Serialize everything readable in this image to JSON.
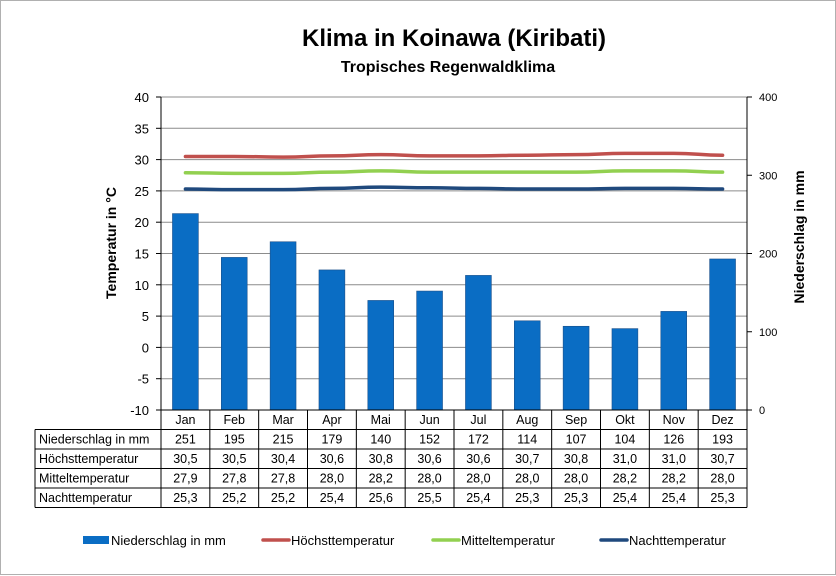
{
  "chart_data": {
    "type": "bar",
    "title": "Klima in Koinawa (Kiribati)",
    "subtitle": "Tropisches Regenwaldklima",
    "ylabel_left": "Temperatur in °C",
    "ylabel_right": "Niederschlag in mm",
    "categories": [
      "Jan",
      "Feb",
      "Mar",
      "Apr",
      "Mai",
      "Jun",
      "Jul",
      "Aug",
      "Sep",
      "Okt",
      "Nov",
      "Dez"
    ],
    "ylim_left": [
      -10,
      40
    ],
    "yticks_left": [
      40,
      35,
      30,
      25,
      20,
      15,
      10,
      5,
      0,
      -5,
      -10
    ],
    "ylim_right": [
      0,
      400
    ],
    "yticks_right": [
      400,
      300,
      200,
      100,
      0
    ],
    "grid": true,
    "legend_position": "bottom",
    "series": [
      {
        "name": "Niederschlag in mm",
        "kind": "bar",
        "axis": "right",
        "color": "#0a6dc4",
        "values": [
          251,
          195,
          215,
          179,
          140,
          152,
          172,
          114,
          107,
          104,
          126,
          193
        ],
        "display": [
          "251",
          "195",
          "215",
          "179",
          "140",
          "152",
          "172",
          "114",
          "107",
          "104",
          "126",
          "193"
        ]
      },
      {
        "name": "Höchsttemperatur",
        "kind": "line",
        "axis": "left",
        "color": "#c0504d",
        "values": [
          30.5,
          30.5,
          30.4,
          30.6,
          30.8,
          30.6,
          30.6,
          30.7,
          30.8,
          31.0,
          31.0,
          30.7
        ],
        "display": [
          "30,5",
          "30,5",
          "30,4",
          "30,6",
          "30,8",
          "30,6",
          "30,6",
          "30,7",
          "30,8",
          "31,0",
          "31,0",
          "30,7"
        ]
      },
      {
        "name": "Mitteltemperatur",
        "kind": "line",
        "axis": "left",
        "color": "#92d050",
        "values": [
          27.9,
          27.8,
          27.8,
          28.0,
          28.2,
          28.0,
          28.0,
          28.0,
          28.0,
          28.2,
          28.2,
          28.0
        ],
        "display": [
          "27,9",
          "27,8",
          "27,8",
          "28,0",
          "28,2",
          "28,0",
          "28,0",
          "28,0",
          "28,0",
          "28,2",
          "28,2",
          "28,0"
        ]
      },
      {
        "name": "Nachttemperatur",
        "kind": "line",
        "axis": "left",
        "color": "#1f497d",
        "values": [
          25.3,
          25.2,
          25.2,
          25.4,
          25.6,
          25.5,
          25.4,
          25.3,
          25.3,
          25.4,
          25.4,
          25.3
        ],
        "display": [
          "25,3",
          "25,2",
          "25,2",
          "25,4",
          "25,6",
          "25,5",
          "25,4",
          "25,3",
          "25,3",
          "25,4",
          "25,4",
          "25,3"
        ]
      }
    ]
  }
}
